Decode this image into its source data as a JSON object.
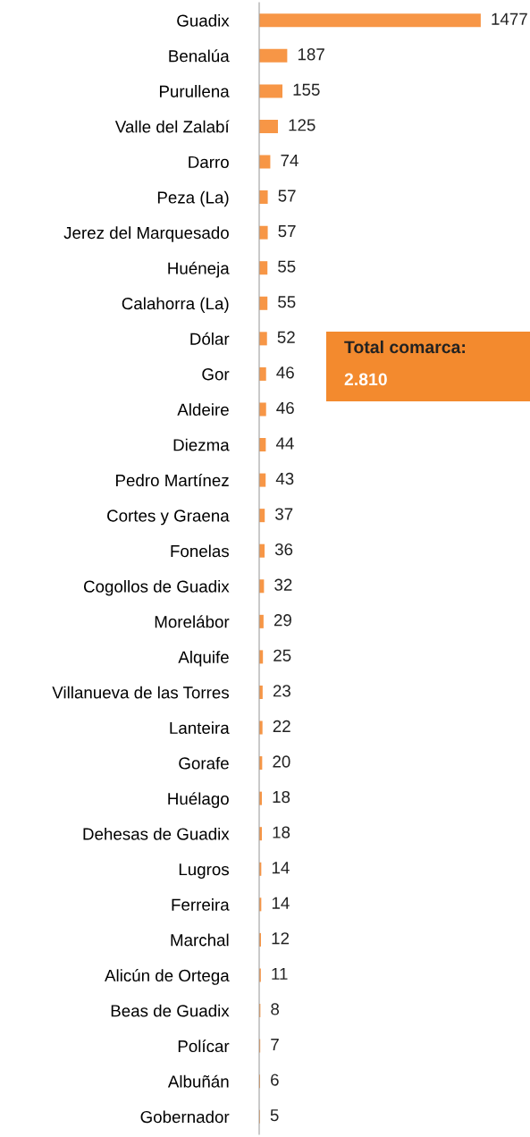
{
  "chart_data": {
    "type": "bar",
    "orientation": "horizontal",
    "categories": [
      "Guadix",
      "Benalúa",
      "Purullena",
      "Valle del Zalabí",
      "Darro",
      "Peza (La)",
      "Jerez del Marquesado",
      "Huéneja",
      "Calahorra (La)",
      "Dólar",
      "Gor",
      "Aldeire",
      "Diezma",
      "Pedro Martínez",
      "Cortes y Graena",
      "Fonelas",
      "Cogollos de Guadix",
      "Morelábor",
      "Alquife",
      "Villanueva de las Torres",
      "Lanteira",
      "Gorafe",
      "Huélago",
      "Dehesas de Guadix",
      "Lugros",
      "Ferreira",
      "Marchal",
      "Alicún de Ortega",
      "Beas de Guadix",
      "Polícar",
      "Albuñán",
      "Gobernador"
    ],
    "values": [
      1477,
      187,
      155,
      125,
      74,
      57,
      57,
      55,
      55,
      52,
      46,
      46,
      44,
      43,
      37,
      36,
      32,
      29,
      25,
      23,
      22,
      20,
      18,
      18,
      14,
      14,
      12,
      11,
      8,
      7,
      6,
      5
    ],
    "color": "#f79646",
    "data_labels": true,
    "grid": false,
    "legend": false,
    "annotations": [
      "Total comarca:",
      "2.810"
    ]
  }
}
